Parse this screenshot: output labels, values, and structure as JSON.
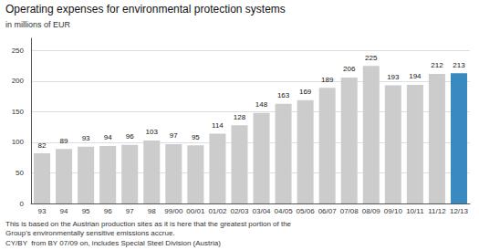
{
  "chart_data": {
    "type": "bar",
    "title": "Operating expenses for environmental protection systems",
    "subtitle": "in millions of EUR",
    "categories": [
      "93",
      "94",
      "95",
      "96",
      "97",
      "98",
      "99/00",
      "00/01",
      "01/02",
      "02/03",
      "03/04",
      "04/05",
      "05/06",
      "06/07",
      "07/08",
      "08/09",
      "09/10",
      "10/11",
      "11/12",
      "12/13"
    ],
    "values": [
      82,
      89,
      93,
      94,
      96,
      103,
      97,
      95,
      114,
      128,
      148,
      163,
      169,
      189,
      206,
      225,
      193,
      194,
      212,
      213
    ],
    "colors": [
      "#cccccc",
      "#cccccc",
      "#cccccc",
      "#cccccc",
      "#cccccc",
      "#cccccc",
      "#cccccc",
      "#cccccc",
      "#cccccc",
      "#cccccc",
      "#cccccc",
      "#cccccc",
      "#cccccc",
      "#cccccc",
      "#cccccc",
      "#cccccc",
      "#cccccc",
      "#cccccc",
      "#cccccc",
      "#3a8abf"
    ],
    "ylim": [
      0,
      270
    ],
    "yticks": [
      0,
      50,
      100,
      150,
      200,
      250
    ],
    "grid": true,
    "data_labels": true,
    "annotations": [
      "This is based on the Austrian production sites as it is here that the greatest portion of the\nGroup's environmentally sensitive emissions accrue.",
      "CY/BY  from BY 07/09 on, includes Special Steel Division (Austria)"
    ]
  }
}
